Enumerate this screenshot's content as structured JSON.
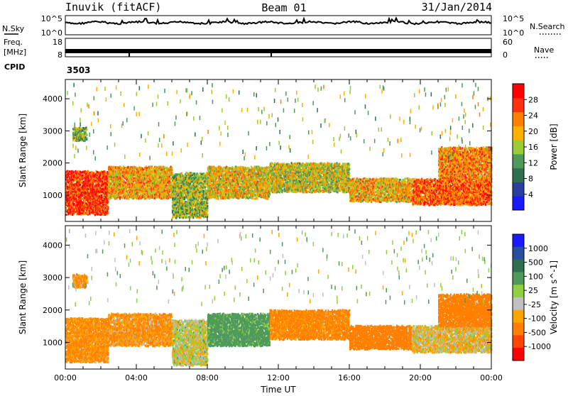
{
  "header": {
    "station": "Inuvik (fitACF)",
    "beam": "Beam 01",
    "date": "31/Jan/2014"
  },
  "top_panels": {
    "nsky_label": "N.Sky",
    "nsky_ticks": [
      "10^5",
      "10^0"
    ],
    "nsearch_label": "N.Search",
    "nsearch_ticks": [
      "10^5",
      "10^0"
    ],
    "freq_label": "Freq.",
    "freq_unit": "[MHz]",
    "freq_ticks": [
      "18",
      "8"
    ],
    "nave_label": "Nave",
    "nave_ticks": [
      "60",
      "0"
    ],
    "cpid_label": "CPID",
    "cpid_value": "3503"
  },
  "colors": {
    "power_scale": [
      "#1a1aff",
      "#2a3ea0",
      "#2f6f4f",
      "#4f9a5a",
      "#9acd32",
      "#ffb000",
      "#ff7f00",
      "#ff3010",
      "#ff0000"
    ],
    "velocity_scale": [
      "#1a1aff",
      "#2850a0",
      "#2e6f50",
      "#4f9a5a",
      "#8fd040",
      "#c0c0c0",
      "#ffa500",
      "#ff8000",
      "#ff4500",
      "#ff0000"
    ]
  },
  "chart_data": [
    {
      "type": "heatmap",
      "panel": "power",
      "ylabel": "Slant Range [km]",
      "ylim": [
        180,
        4600
      ],
      "y_ticks": [
        1000,
        2000,
        3000,
        4000
      ],
      "colorbar_label": "Power [dB]",
      "colorbar_ticks": [
        "4",
        "8",
        "12",
        "16",
        "20",
        "24",
        "28"
      ],
      "colorbar_range": [
        0,
        30
      ],
      "bands": [
        {
          "t0": 0.0,
          "t1": 2.4,
          "r0": 400,
          "r1": 1750,
          "level": 27
        },
        {
          "t0": 2.4,
          "t1": 6.0,
          "r0": 900,
          "r1": 1900,
          "level": 20
        },
        {
          "t0": 6.0,
          "t1": 8.0,
          "r0": 300,
          "r1": 1700,
          "level": 14
        },
        {
          "t0": 8.0,
          "t1": 11.5,
          "r0": 900,
          "r1": 1900,
          "level": 18
        },
        {
          "t0": 11.5,
          "t1": 16.0,
          "r0": 1100,
          "r1": 2000,
          "level": 16
        },
        {
          "t0": 16.0,
          "t1": 19.5,
          "r0": 800,
          "r1": 1500,
          "level": 19
        },
        {
          "t0": 19.5,
          "t1": 24.0,
          "r0": 700,
          "r1": 1500,
          "level": 24
        },
        {
          "t0": 21.0,
          "t1": 24.0,
          "r0": 1500,
          "r1": 2500,
          "level": 22
        },
        {
          "t0": 0.4,
          "t1": 1.2,
          "r0": 2700,
          "r1": 3100,
          "level": 14
        }
      ]
    },
    {
      "type": "heatmap",
      "panel": "velocity",
      "xlabel": "Time UT",
      "ylabel": "Slant Range [km]",
      "ylim": [
        180,
        4600
      ],
      "y_ticks": [
        1000,
        2000,
        3000,
        4000
      ],
      "x_ticks": [
        "00:00",
        "04:00",
        "08:00",
        "12:00",
        "16:00",
        "20:00",
        "00:00"
      ],
      "xlim": [
        0,
        24
      ],
      "colorbar_label": "Velocity [m s^-1]",
      "colorbar_ticks": [
        "-1000",
        "-500",
        "-100",
        "-25",
        "25",
        "100",
        "500",
        "1000"
      ],
      "bands": [
        {
          "t0": 0.0,
          "t1": 2.4,
          "r0": 400,
          "r1": 1750,
          "velocity": -120
        },
        {
          "t0": 2.4,
          "t1": 6.0,
          "r0": 900,
          "r1": 1900,
          "velocity": -110
        },
        {
          "t0": 6.0,
          "t1": 8.0,
          "r0": 300,
          "r1": 1700,
          "velocity": 10
        },
        {
          "t0": 8.0,
          "t1": 11.5,
          "r0": 900,
          "r1": 1900,
          "velocity": 180
        },
        {
          "t0": 11.5,
          "t1": 16.0,
          "r0": 1100,
          "r1": 2000,
          "velocity": -160
        },
        {
          "t0": 16.0,
          "t1": 19.5,
          "r0": 800,
          "r1": 1500,
          "velocity": -400
        },
        {
          "t0": 19.5,
          "t1": 24.0,
          "r0": 700,
          "r1": 1500,
          "velocity": -30
        },
        {
          "t0": 21.0,
          "t1": 24.0,
          "r0": 1500,
          "r1": 2500,
          "velocity": -200
        },
        {
          "t0": 0.4,
          "t1": 1.2,
          "r0": 2700,
          "r1": 3100,
          "velocity": -100
        }
      ]
    }
  ]
}
